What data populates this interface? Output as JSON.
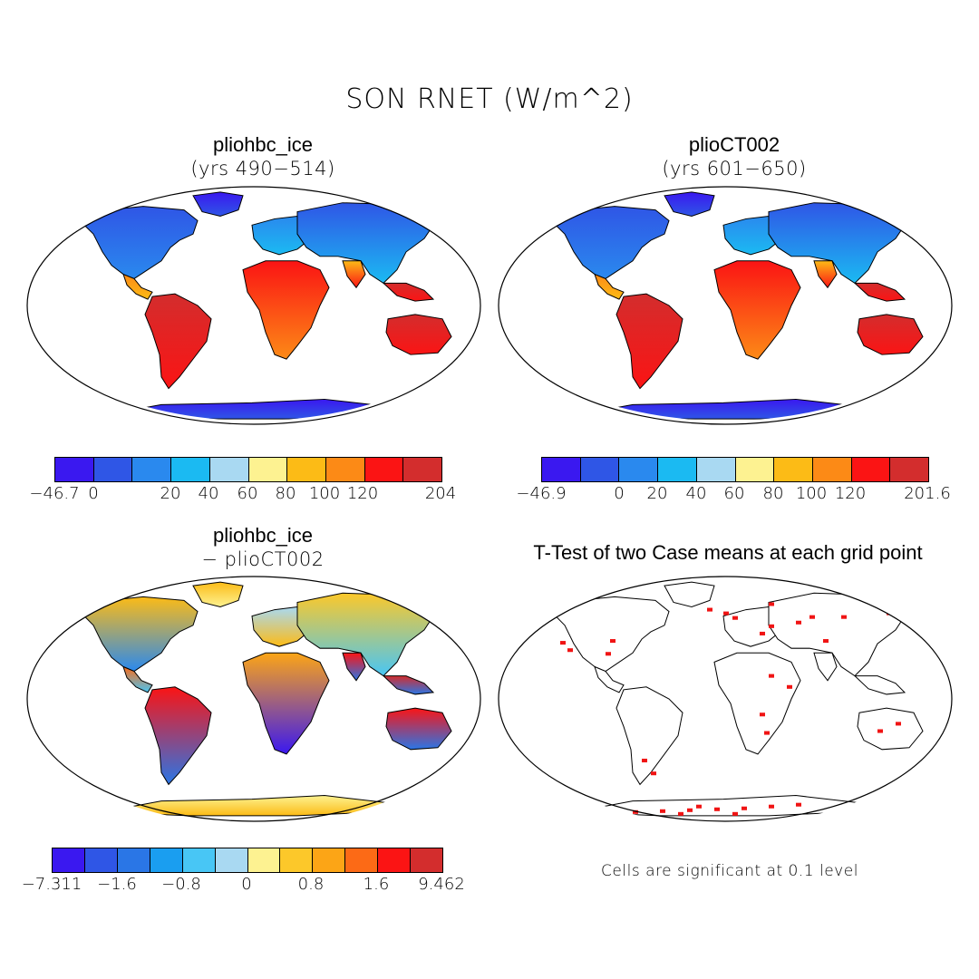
{
  "title": "SON RNET (W/m^2)",
  "panels": {
    "tl": {
      "title": "pliohbc_ice",
      "subtitle": "(yrs 490−514)",
      "colorbar": {
        "colors": [
          "#3a18f0",
          "#2f56e6",
          "#2a89ee",
          "#1bbaf2",
          "#a9d9f2",
          "#fdf291",
          "#fcbb16",
          "#fc8a16",
          "#fb1414",
          "#d32d2d"
        ],
        "ticks": [
          "−46.7",
          "0",
          "20",
          "40",
          "60",
          "80",
          "100",
          "120",
          "204"
        ]
      }
    },
    "tr": {
      "title": "plioCT002",
      "subtitle": "(yrs 601−650)",
      "colorbar": {
        "colors": [
          "#3a18f0",
          "#2f56e6",
          "#2a89ee",
          "#1bbaf2",
          "#a9d9f2",
          "#fdf291",
          "#fcbb16",
          "#fc8a16",
          "#fb1414",
          "#d32d2d"
        ],
        "ticks": [
          "−46.9",
          "0",
          "20",
          "40",
          "60",
          "80",
          "100",
          "120",
          "201.6"
        ]
      }
    },
    "bl": {
      "title": "pliohbc_ice",
      "subtitle": "− plioCT002",
      "colorbar": {
        "colors": [
          "#3a18f0",
          "#2f56e6",
          "#2a76e6",
          "#1a9ef0",
          "#48c6f5",
          "#a9d9f2",
          "#fdf291",
          "#fcc82a",
          "#fca516",
          "#fc6a16",
          "#fb1414",
          "#d32d2d"
        ],
        "ticks": [
          "−7.311",
          "−1.6",
          "−0.8",
          "0",
          "0.8",
          "1.6",
          "9.462"
        ]
      }
    },
    "br": {
      "title": "T-Test of two Case means at each grid point",
      "note": "Cells are significant at 0.1 level"
    }
  },
  "colors": {
    "land_blank": "#ffffff",
    "significance": "#f01414",
    "outline": "#000000"
  }
}
